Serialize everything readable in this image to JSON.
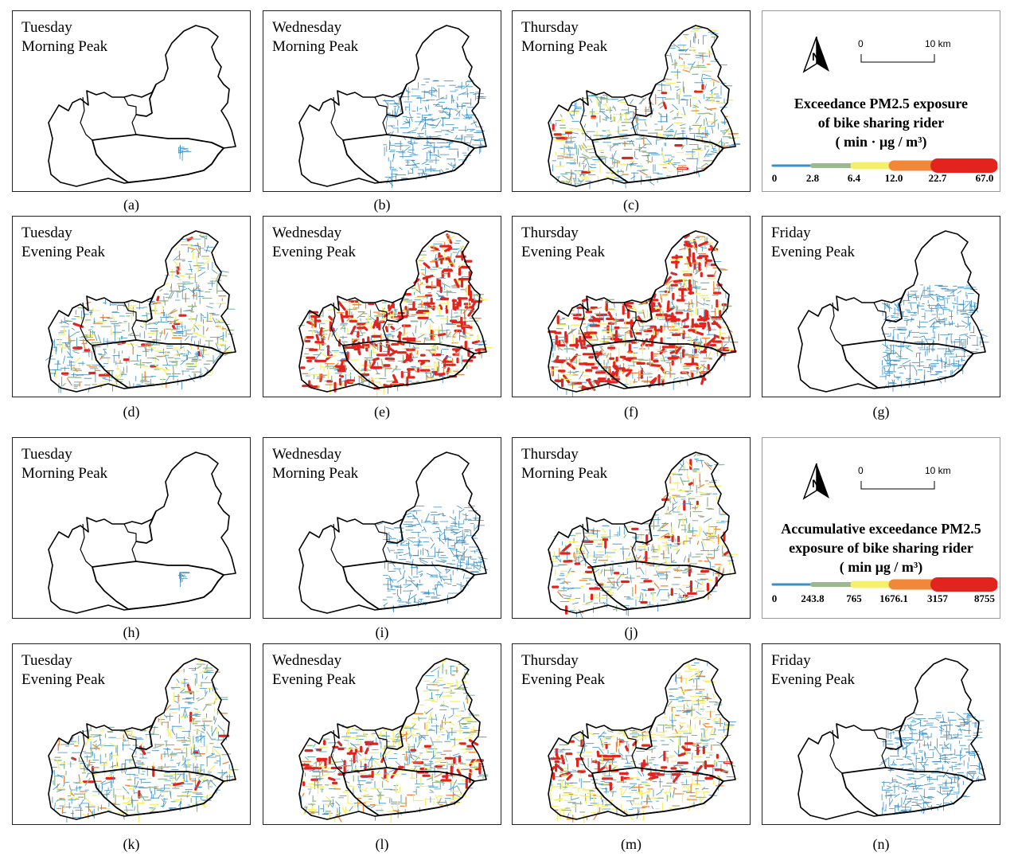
{
  "panels": [
    {
      "id": "a",
      "day": "Tuesday",
      "period": "Morning Peak",
      "label": "(a)",
      "intensity": 0.01,
      "stage": 0
    },
    {
      "id": "b",
      "day": "Wednesday",
      "period": "Morning Peak",
      "label": "(b)",
      "intensity": 0.3,
      "stage": 0
    },
    {
      "id": "c",
      "day": "Thursday",
      "period": "Morning Peak",
      "label": "(c)",
      "intensity": 0.8,
      "stage": 1
    },
    {
      "id": "d",
      "day": "Tuesday",
      "period": "Evening Peak",
      "label": "(d)",
      "intensity": 0.85,
      "stage": 1
    },
    {
      "id": "e",
      "day": "Wednesday",
      "period": "Evening Peak",
      "label": "(e)",
      "intensity": 1.0,
      "stage": 3
    },
    {
      "id": "f",
      "day": "Thursday",
      "period": "Evening Peak",
      "label": "(f)",
      "intensity": 1.0,
      "stage": 3
    },
    {
      "id": "g",
      "day": "Friday",
      "period": "Evening Peak",
      "label": "(g)",
      "intensity": 0.35,
      "stage": 0
    },
    {
      "id": "h",
      "day": "Tuesday",
      "period": "Morning Peak",
      "label": "(h)",
      "intensity": 0.01,
      "stage": 0
    },
    {
      "id": "i",
      "day": "Wednesday",
      "period": "Morning Peak",
      "label": "(i)",
      "intensity": 0.3,
      "stage": 0
    },
    {
      "id": "j",
      "day": "Thursday",
      "period": "Morning Peak",
      "label": "(j)",
      "intensity": 0.75,
      "stage": 2
    },
    {
      "id": "k",
      "day": "Tuesday",
      "period": "Evening Peak",
      "label": "(k)",
      "intensity": 0.85,
      "stage": 1
    },
    {
      "id": "l",
      "day": "Wednesday",
      "period": "Evening Peak",
      "label": "(l)",
      "intensity": 0.9,
      "stage": 4
    },
    {
      "id": "m",
      "day": "Thursday",
      "period": "Evening Peak",
      "label": "(m)",
      "intensity": 0.9,
      "stage": 4
    },
    {
      "id": "n",
      "day": "Friday",
      "period": "Evening Peak",
      "label": "(n)",
      "intensity": 0.35,
      "stage": 0
    }
  ],
  "legends": [
    {
      "title_line1": "Exceedance PM2.5 exposure",
      "title_line2": "of bike sharing rider",
      "title_line3": "( min · μg / m³)",
      "ticks": [
        "0",
        "2.8",
        "6.4",
        "12.0",
        "22.7",
        "67.0"
      ],
      "scale": {
        "zero": "0",
        "km": "10 km"
      }
    },
    {
      "title_line1": "Accumulative exceedance PM2.5",
      "title_line2": "exposure of bike sharing rider",
      "title_line3": "( min  μg / m³)",
      "ticks": [
        "0",
        "243.8",
        "765",
        "1676.1",
        "3157",
        "8755"
      ],
      "scale": {
        "zero": "0",
        "km": "10 km"
      }
    }
  ],
  "colors": {
    "c1": "#3a8fc5",
    "c2": "#9cb88f",
    "c3": "#f4f06a",
    "c4": "#f2873a",
    "c5": "#e3241e",
    "boundary": "#000000"
  },
  "icons": {
    "north_arrow": "north-arrow-icon"
  }
}
